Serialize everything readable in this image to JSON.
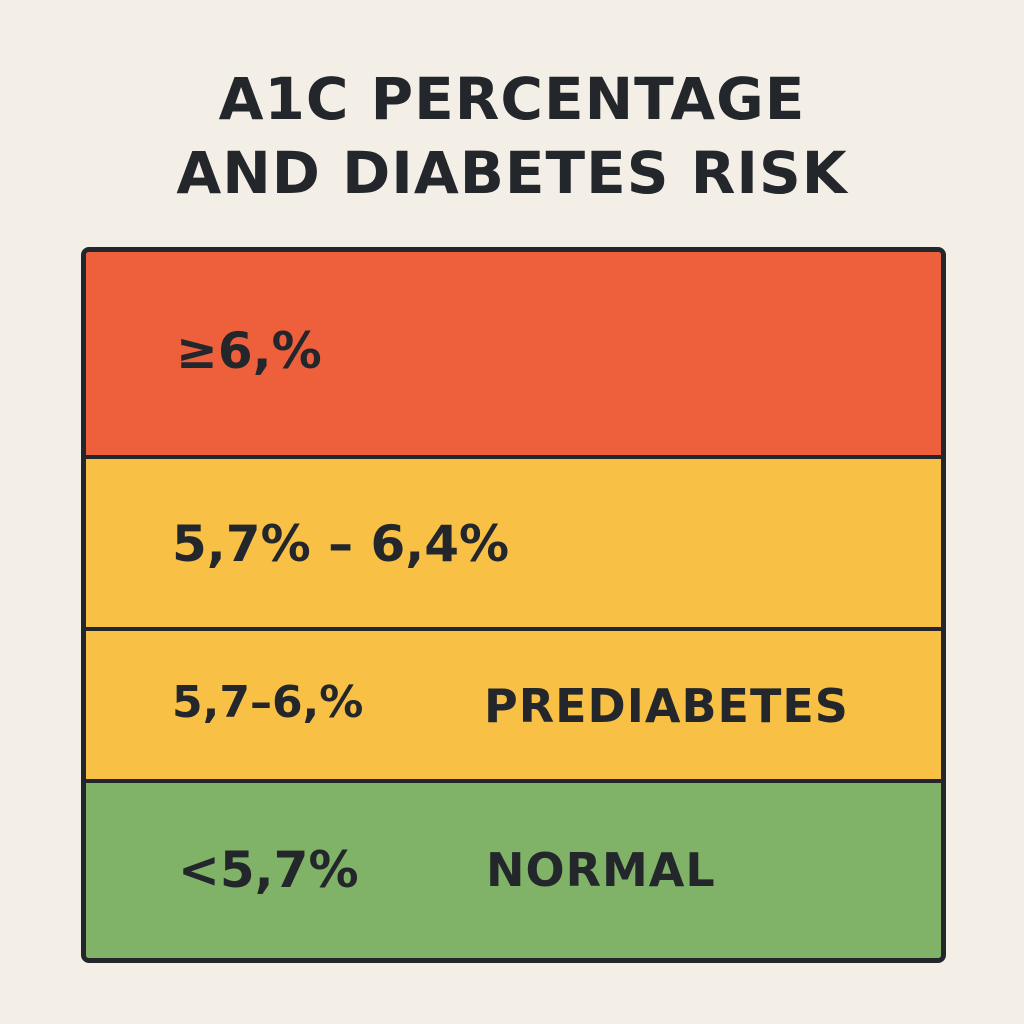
{
  "title": {
    "line1": "A1C PERCENTAGE",
    "line2": "AND DIABETES RISK"
  },
  "colors": {
    "diabetes": "#ee603c",
    "prediabetes": "#f8c045",
    "normal": "#80b268",
    "border": "#23262a",
    "background": "#f4efe6"
  },
  "rows": [
    {
      "value": "≥6,%",
      "label": ""
    },
    {
      "value": "5,7% – 6,4%",
      "label": ""
    },
    {
      "value": "5,7–6,%",
      "label": "PREDIABETES"
    },
    {
      "value": "<5,7%",
      "label": "NORMAL"
    }
  ]
}
